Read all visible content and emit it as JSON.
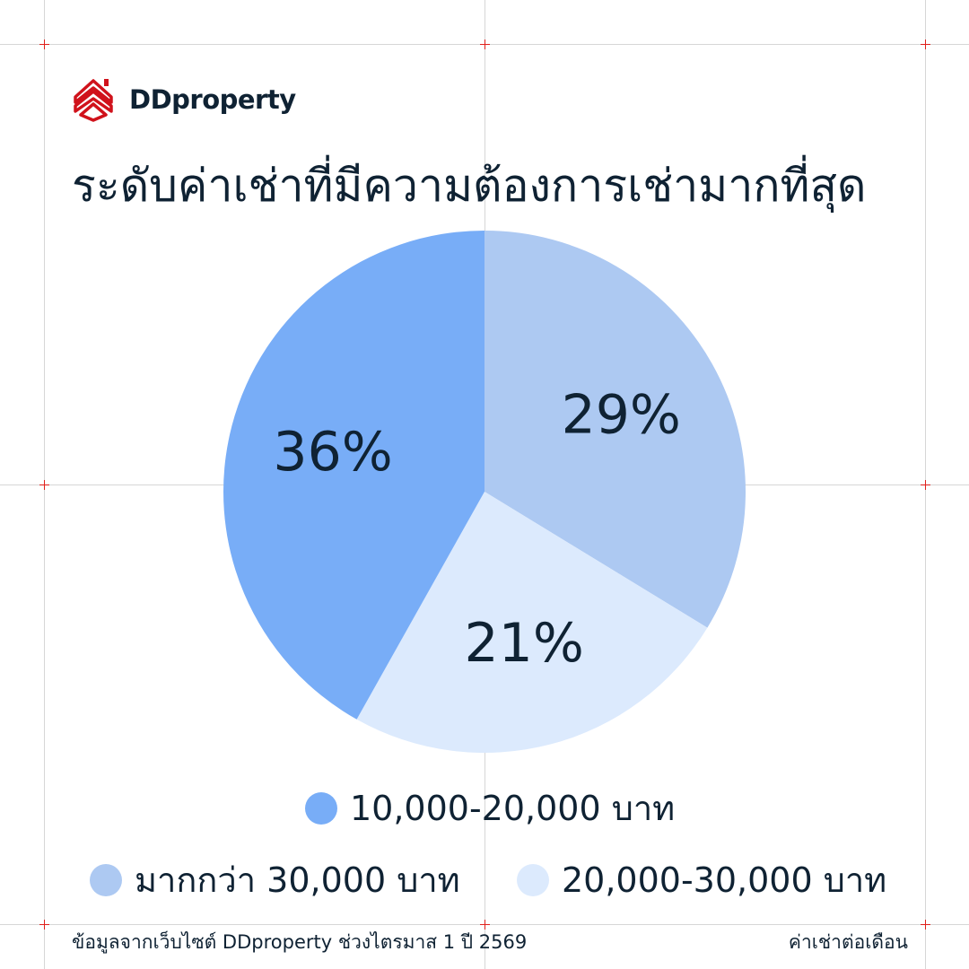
{
  "brand": {
    "name": "DDproperty",
    "color": "#d0121b"
  },
  "title": "ระดับค่าเช่าที่มีความต้องการเช่ามากที่สุด",
  "chart_data": {
    "type": "pie",
    "title": "ระดับค่าเช่าที่มีความต้องการเช่ามากที่สุด",
    "slices": [
      {
        "label": "มากกว่า 30,000 บาท",
        "value": 29,
        "display": "29%",
        "color": "#adc9f2"
      },
      {
        "label": "20,000-30,000 บาท",
        "value": 21,
        "display": "21%",
        "color": "#dceafd"
      },
      {
        "label": "10,000-20,000 บาท",
        "value": 36,
        "display": "36%",
        "color": "#78adf7"
      }
    ],
    "start": "top, clockwise",
    "legend_placement": "bottom"
  },
  "footer": {
    "source": "ข้อมูลจากเว็บไซต์ DDproperty ช่วงไตรมาส 1 ปี 2569",
    "note": "ค่าเช่าต่อเดือน"
  },
  "colors": {
    "text": "#0f2233",
    "grid": "#d6d6d6",
    "crosshair": "#e0201c"
  }
}
